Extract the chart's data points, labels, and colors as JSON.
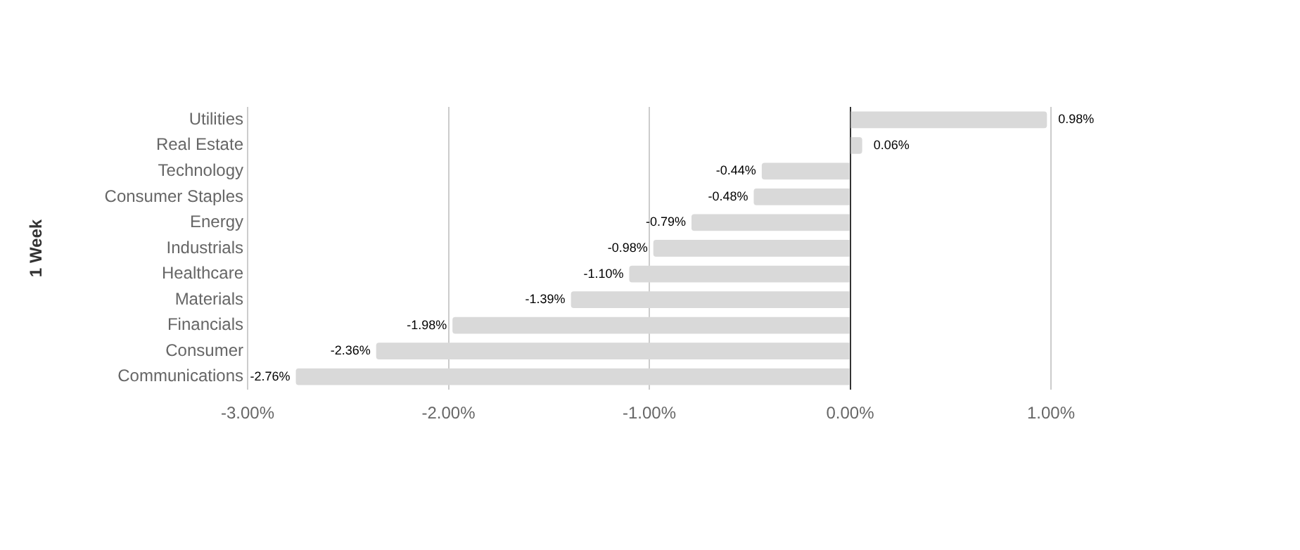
{
  "chart_data": {
    "type": "bar",
    "orientation": "horizontal",
    "ylabel": "1 Week",
    "categories": [
      "Utilities",
      "Real Estate",
      "Technology",
      "Consumer Staples",
      "Energy",
      "Industrials",
      "Healthcare",
      "Materials",
      "Financials",
      "Consumer",
      "Communications"
    ],
    "values": [
      0.98,
      0.06,
      -0.44,
      -0.48,
      -0.79,
      -0.98,
      -1.1,
      -1.39,
      -1.98,
      -2.36,
      -2.76
    ],
    "value_labels": [
      "0.98%",
      "0.06%",
      "-0.44%",
      "-0.48%",
      "-0.79%",
      "-0.98%",
      "-1.10%",
      "-1.39%",
      "-1.98%",
      "-2.36%",
      "-2.76%"
    ],
    "color": "#d9d9d9",
    "xlim": [
      -3,
      1
    ],
    "xticks": [
      {
        "value": -3,
        "label": "-3.00%"
      },
      {
        "value": -2,
        "label": "-2.00%"
      },
      {
        "value": -1,
        "label": "-1.00%"
      },
      {
        "value": 0,
        "label": "0.00%"
      },
      {
        "value": 1,
        "label": "1.00%"
      }
    ],
    "grid": "x",
    "legend": false
  }
}
